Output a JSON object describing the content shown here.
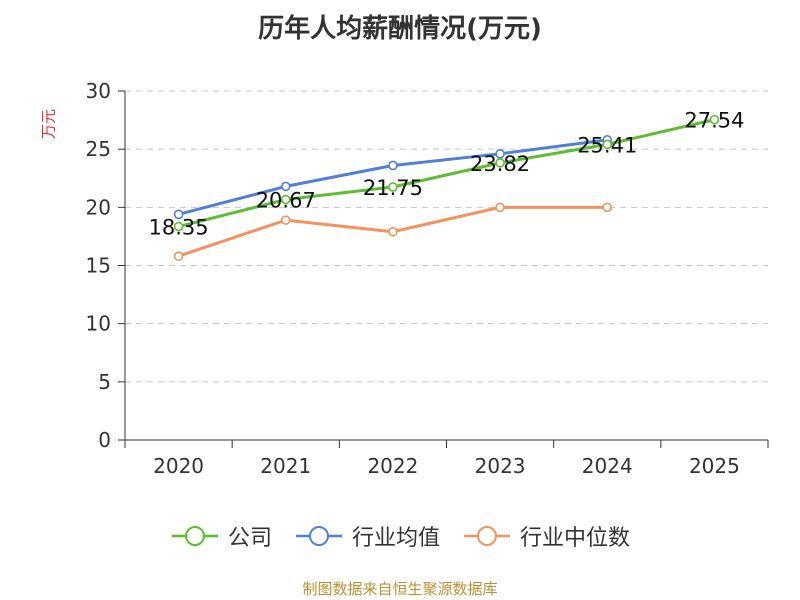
{
  "chart_data": {
    "type": "line",
    "title": "历年人均薪酬情况(万元)",
    "ylabel": "万元",
    "xlabel": "",
    "categories": [
      "2020",
      "2021",
      "2022",
      "2023",
      "2024",
      "2025"
    ],
    "ylim": [
      0,
      30
    ],
    "yticks": [
      0,
      5,
      10,
      15,
      20,
      25,
      30
    ],
    "grid": true,
    "legend_position": "bottom",
    "series": [
      {
        "name": "公司",
        "color": "#5cbd2e",
        "values": [
          18.35,
          20.67,
          21.75,
          23.82,
          25.41,
          27.54
        ],
        "labels": [
          "18.35",
          "20.67",
          "21.75",
          "23.82",
          "25.41",
          "27.54"
        ]
      },
      {
        "name": "行业均值",
        "color": "#4f7fd6",
        "values": [
          19.4,
          21.8,
          23.6,
          24.6,
          25.8,
          null
        ]
      },
      {
        "name": "行业中位数",
        "color": "#f5915a",
        "values": [
          15.8,
          18.9,
          17.9,
          20.0,
          20.0,
          null
        ]
      }
    ]
  },
  "source": "制图数据来自恒生聚源数据库"
}
